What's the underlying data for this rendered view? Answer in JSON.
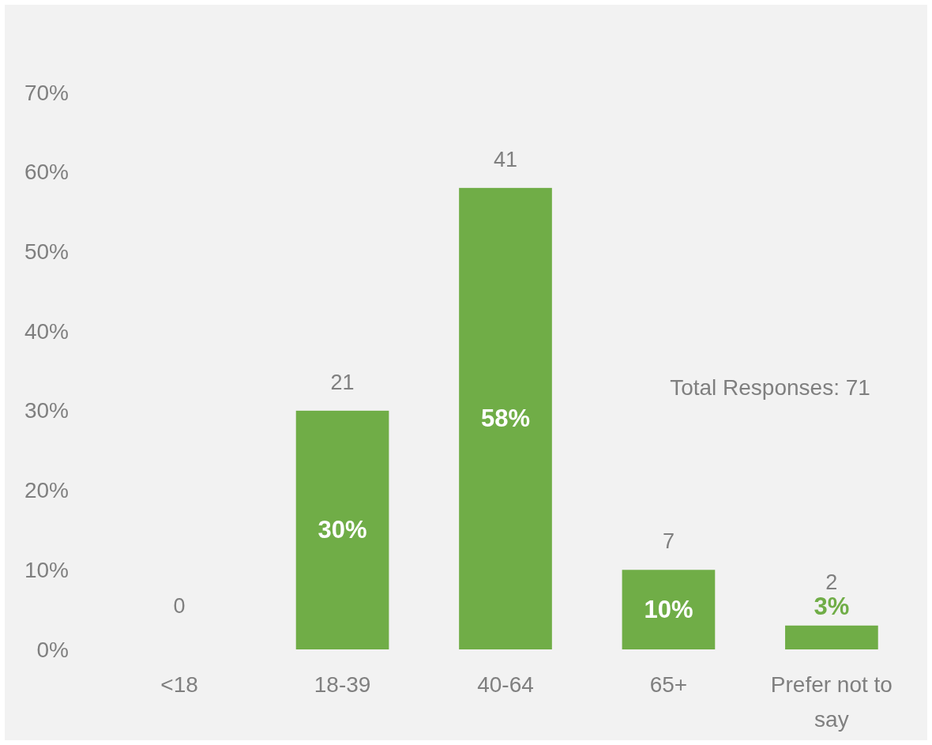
{
  "chart_data": {
    "type": "bar",
    "categories": [
      "<18",
      "18-39",
      "40-64",
      "65+",
      "Prefer not to say"
    ],
    "values": [
      0,
      30,
      58,
      10,
      3
    ],
    "color": "#70ad47",
    "value_labels": [
      null,
      "30%",
      "58%",
      "10%",
      "3%"
    ],
    "ylim": [
      0,
      70
    ],
    "yticks": [
      {
        "value": 0,
        "label": "0%"
      },
      {
        "value": 10,
        "label": "10%"
      },
      {
        "value": 20,
        "label": "20%"
      },
      {
        "value": 30,
        "label": "30%"
      },
      {
        "value": 40,
        "label": "40%"
      },
      {
        "value": 50,
        "label": "50%"
      },
      {
        "value": 60,
        "label": "60%"
      },
      {
        "value": 70,
        "label": "70%"
      }
    ],
    "grid": false,
    "annotations": [
      {
        "text": "0",
        "x": "<18",
        "y": 0
      },
      {
        "text": "21",
        "x": "18-39",
        "y": 30
      },
      {
        "text": "41",
        "x": "40-64",
        "y": 58
      },
      {
        "text": "7",
        "x": "65+",
        "y": 10
      },
      {
        "text": "2",
        "x": "Prefer not to say",
        "y": 3
      },
      "Total Responses: 71"
    ]
  }
}
